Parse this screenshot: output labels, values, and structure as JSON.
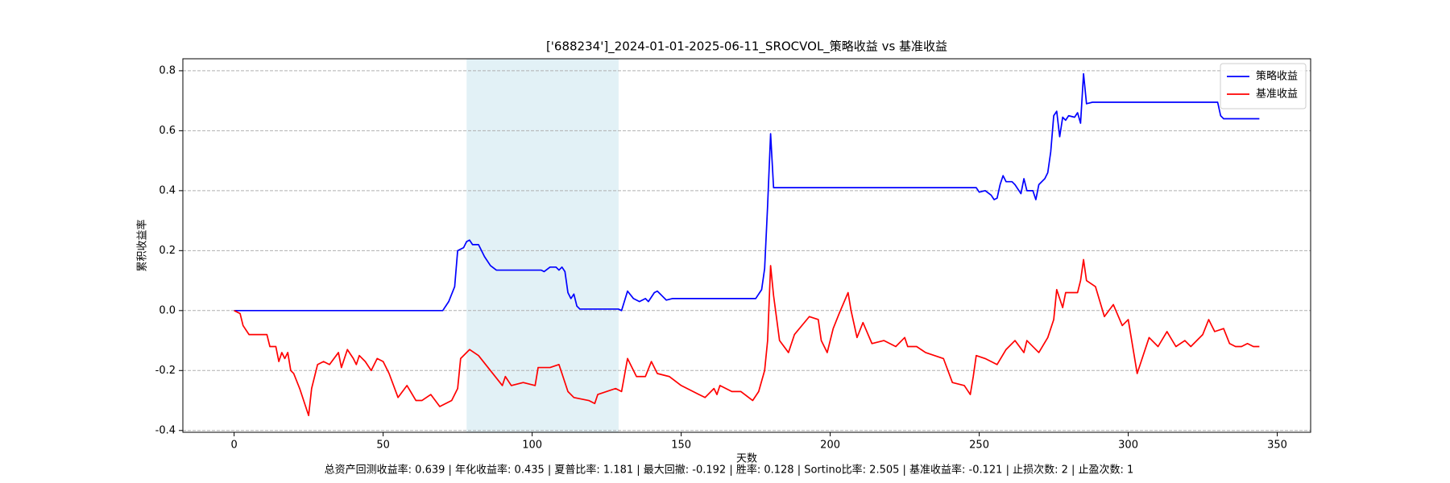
{
  "chart_data": {
    "type": "line",
    "title": "['688234']_2024-01-01-2025-06-11_SROCVOL_策略收益 vs 基准收益",
    "xlabel": "天数",
    "ylabel": "累积收益率",
    "footer": "总资产回测收益率: 0.639 | 年化收益率: 0.435 | 夏普比率: 1.181 | 最大回撤: -0.192 | 胜率: 0.128 | Sortino比率: 2.505 | 基准收益率: -0.121 | 止损次数: 2 | 止盈次数: 1",
    "xlim": [
      -17.2,
      361.2
    ],
    "ylim": [
      -0.406,
      0.84
    ],
    "xticks": [
      0,
      50,
      100,
      150,
      200,
      250,
      300,
      350
    ],
    "yticks": [
      -0.4,
      -0.2,
      {
        "value": 0,
        "label": "0.0"
      },
      0.2,
      0.4,
      0.6,
      0.8
    ],
    "grid": "y",
    "legend": "upper right",
    "highlight_span": [
      78,
      129
    ],
    "highlight_color": "#add8e6",
    "series": [
      {
        "name": "策略收益",
        "color": "#0000ff",
        "x": [
          0,
          70,
          72,
          74,
          75,
          77,
          78,
          79,
          80,
          82,
          84,
          86,
          88,
          100,
          103,
          104,
          106,
          108,
          109,
          110,
          111,
          112,
          113,
          114,
          115,
          116,
          129,
          130,
          132,
          134,
          136,
          138,
          139,
          141,
          142,
          144,
          145,
          147,
          175,
          177,
          178,
          179,
          180,
          181,
          249,
          250,
          252,
          254,
          255,
          256,
          257,
          258,
          259,
          261,
          262,
          264,
          265,
          266,
          268,
          269,
          270,
          272,
          273,
          274,
          275,
          276,
          277,
          278,
          279,
          280,
          282,
          283,
          284,
          285,
          286,
          288,
          330,
          331,
          332,
          344
        ],
        "values": [
          0,
          0,
          0.03,
          0.08,
          0.2,
          0.21,
          0.23,
          0.235,
          0.22,
          0.22,
          0.18,
          0.15,
          0.135,
          0.135,
          0.135,
          0.13,
          0.145,
          0.145,
          0.135,
          0.145,
          0.13,
          0.06,
          0.04,
          0.055,
          0.015,
          0.005,
          0.005,
          0,
          0.065,
          0.04,
          0.03,
          0.04,
          0.03,
          0.06,
          0.065,
          0.045,
          0.035,
          0.04,
          0.04,
          0.07,
          0.14,
          0.35,
          0.59,
          0.41,
          0.41,
          0.395,
          0.4,
          0.385,
          0.37,
          0.375,
          0.42,
          0.45,
          0.43,
          0.43,
          0.42,
          0.39,
          0.44,
          0.4,
          0.4,
          0.37,
          0.42,
          0.44,
          0.46,
          0.53,
          0.65,
          0.665,
          0.58,
          0.645,
          0.635,
          0.65,
          0.645,
          0.66,
          0.625,
          0.79,
          0.69,
          0.695,
          0.695,
          0.65,
          0.64,
          0.64
        ]
      },
      {
        "name": "基准收益",
        "color": "#ff0000",
        "x": [
          0,
          2,
          3,
          5,
          7,
          11,
          12,
          14,
          15,
          16,
          17,
          18,
          19,
          20,
          22,
          24,
          25,
          26,
          28,
          30,
          32,
          35,
          36,
          38,
          40,
          41,
          42,
          44,
          46,
          48,
          50,
          52,
          55,
          58,
          61,
          63,
          66,
          69,
          71,
          73,
          75,
          76,
          79,
          82,
          86,
          90,
          91,
          93,
          97,
          101,
          102,
          106,
          109,
          110,
          112,
          114,
          119,
          121,
          122,
          128,
          130,
          132,
          135,
          138,
          140,
          142,
          146,
          150,
          156,
          158,
          161,
          162,
          163,
          167,
          170,
          174,
          176,
          178,
          179,
          180,
          181,
          183,
          186,
          188,
          193,
          196,
          197,
          199,
          201,
          203,
          206,
          207,
          209,
          211,
          214,
          218,
          222,
          225,
          226,
          229,
          232,
          235,
          238,
          241,
          245,
          247,
          248,
          249,
          252,
          256,
          259,
          262,
          265,
          266,
          270,
          273,
          275,
          276,
          278,
          279,
          283,
          284,
          285,
          286,
          289,
          292,
          295,
          298,
          300,
          303,
          305,
          307,
          310,
          313,
          316,
          319,
          321,
          325,
          327,
          329,
          332,
          334,
          336,
          338,
          340,
          342,
          344
        ],
        "values": [
          0,
          -0.01,
          -0.05,
          -0.08,
          -0.08,
          -0.08,
          -0.12,
          -0.12,
          -0.17,
          -0.14,
          -0.16,
          -0.14,
          -0.2,
          -0.21,
          -0.26,
          -0.32,
          -0.35,
          -0.26,
          -0.18,
          -0.17,
          -0.18,
          -0.14,
          -0.19,
          -0.13,
          -0.16,
          -0.18,
          -0.15,
          -0.17,
          -0.2,
          -0.16,
          -0.17,
          -0.21,
          -0.29,
          -0.25,
          -0.3,
          -0.3,
          -0.28,
          -0.32,
          -0.31,
          -0.3,
          -0.26,
          -0.16,
          -0.13,
          -0.15,
          -0.2,
          -0.25,
          -0.22,
          -0.25,
          -0.24,
          -0.25,
          -0.19,
          -0.19,
          -0.18,
          -0.21,
          -0.27,
          -0.29,
          -0.3,
          -0.31,
          -0.28,
          -0.26,
          -0.27,
          -0.16,
          -0.22,
          -0.22,
          -0.17,
          -0.21,
          -0.22,
          -0.25,
          -0.28,
          -0.29,
          -0.26,
          -0.28,
          -0.25,
          -0.27,
          -0.27,
          -0.3,
          -0.27,
          -0.2,
          -0.1,
          0.15,
          0.05,
          -0.1,
          -0.14,
          -0.08,
          -0.02,
          -0.03,
          -0.1,
          -0.14,
          -0.06,
          -0.01,
          0.06,
          0,
          -0.09,
          -0.04,
          -0.11,
          -0.1,
          -0.12,
          -0.09,
          -0.12,
          -0.12,
          -0.14,
          -0.15,
          -0.16,
          -0.24,
          -0.25,
          -0.28,
          -0.22,
          -0.15,
          -0.16,
          -0.18,
          -0.13,
          -0.1,
          -0.14,
          -0.1,
          -0.14,
          -0.09,
          -0.03,
          0.07,
          0.01,
          0.06,
          0.06,
          0.1,
          0.17,
          0.1,
          0.08,
          -0.02,
          0.02,
          -0.05,
          -0.03,
          -0.21,
          -0.15,
          -0.09,
          -0.12,
          -0.07,
          -0.12,
          -0.1,
          -0.12,
          -0.08,
          -0.03,
          -0.07,
          -0.06,
          -0.11,
          -0.12,
          -0.12,
          -0.11,
          -0.12,
          -0.12
        ]
      }
    ]
  }
}
